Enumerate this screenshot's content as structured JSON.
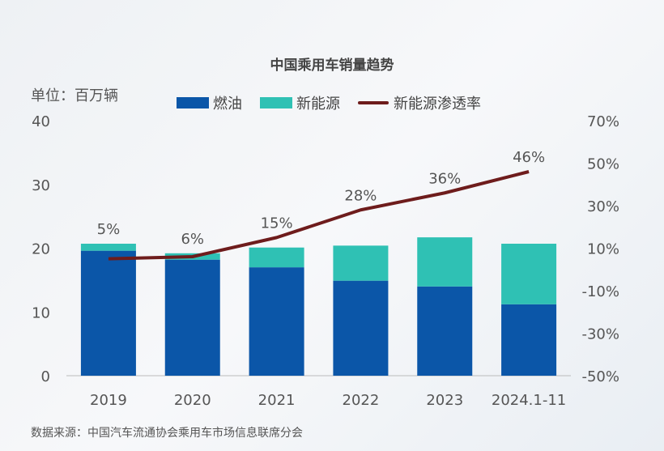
{
  "chart_data": {
    "type": "bar",
    "title": "中国乘用车销量趋势",
    "unit_label": "单位：百万辆",
    "categories": [
      "2019",
      "2020",
      "2021",
      "2022",
      "2023",
      "2024.1-11"
    ],
    "series": [
      {
        "name": "燃油",
        "type": "stacked-bar",
        "axis": "left",
        "color": "#0b56a8",
        "values": [
          19.6,
          18.2,
          17.0,
          14.9,
          14.0,
          11.2
        ]
      },
      {
        "name": "新能源",
        "type": "stacked-bar",
        "axis": "left",
        "color": "#2fc1b4",
        "values": [
          1.1,
          1.0,
          3.1,
          5.5,
          7.7,
          9.5
        ]
      },
      {
        "name": "新能源渗透率",
        "type": "line",
        "axis": "right",
        "color": "#6e1c1c",
        "values": [
          5,
          6,
          15,
          28,
          36,
          46
        ],
        "labels": [
          "5%",
          "6%",
          "15%",
          "28%",
          "36%",
          "46%"
        ]
      }
    ],
    "left_axis": {
      "range": [
        0,
        40
      ],
      "ticks": [
        "0",
        "10",
        "20",
        "30",
        "40"
      ]
    },
    "right_axis": {
      "range": [
        -50,
        70
      ],
      "ticks": [
        "-50%",
        "-30%",
        "-10%",
        "10%",
        "30%",
        "50%",
        "70%"
      ]
    },
    "grid": false,
    "legend_position": "top"
  },
  "source": "数据来源：中国汽车流通协会乘用车市场信息联席分会"
}
